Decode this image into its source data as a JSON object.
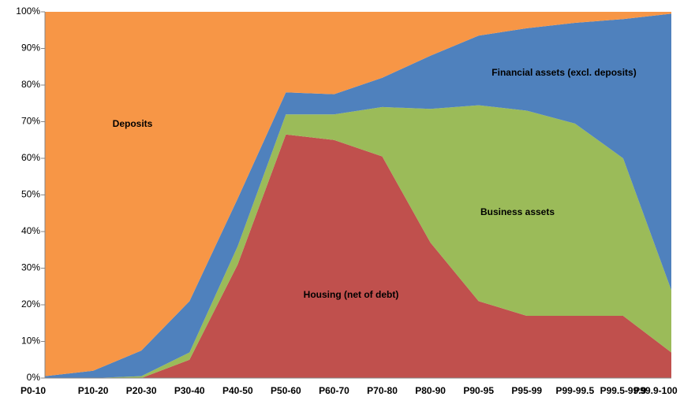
{
  "chart_data": {
    "type": "stacked-area",
    "categories": [
      "P0-10",
      "P10-20",
      "P20-30",
      "P30-40",
      "P40-50",
      "P50-60",
      "P60-70",
      "P70-80",
      "P80-90",
      "P90-95",
      "P95-99",
      "P99-99.5",
      "P99.5-99.9",
      "P99.9-100"
    ],
    "series": [
      {
        "name": "Housing (net of debt)",
        "color": "#c0504d",
        "values": [
          0,
          0,
          0,
          5,
          31,
          66.5,
          65,
          60.5,
          37,
          21,
          17,
          17,
          17,
          7
        ]
      },
      {
        "name": "Business assets",
        "color": "#9bbb59",
        "values": [
          0,
          0,
          0.5,
          2,
          5,
          5.5,
          7,
          13.5,
          36.5,
          53.5,
          56,
          52.5,
          43,
          17
        ]
      },
      {
        "name": "Financial assets  (excl. deposits)",
        "color": "#4f81bd",
        "values": [
          0.5,
          2,
          7,
          14,
          13,
          6,
          5.5,
          8,
          14.5,
          19,
          22.5,
          27.5,
          38,
          75.5
        ]
      },
      {
        "name": "Deposits",
        "color": "#f79646",
        "values": [
          99.5,
          98,
          92.5,
          79,
          51,
          22,
          22.5,
          18,
          12,
          6.5,
          4.5,
          3,
          2,
          0.5
        ]
      }
    ],
    "ylim": [
      0,
      100
    ],
    "yticks": [
      {
        "value": 0,
        "label": "0%"
      },
      {
        "value": 10,
        "label": "10%"
      },
      {
        "value": 20,
        "label": "20%"
      },
      {
        "value": 30,
        "label": "30%"
      },
      {
        "value": 40,
        "label": "40%"
      },
      {
        "value": 50,
        "label": "50%"
      },
      {
        "value": 60,
        "label": "60%"
      },
      {
        "value": 70,
        "label": "70%"
      },
      {
        "value": 80,
        "label": "80%"
      },
      {
        "value": 90,
        "label": "90%"
      },
      {
        "value": 100,
        "label": "100%"
      }
    ],
    "grid": false
  }
}
